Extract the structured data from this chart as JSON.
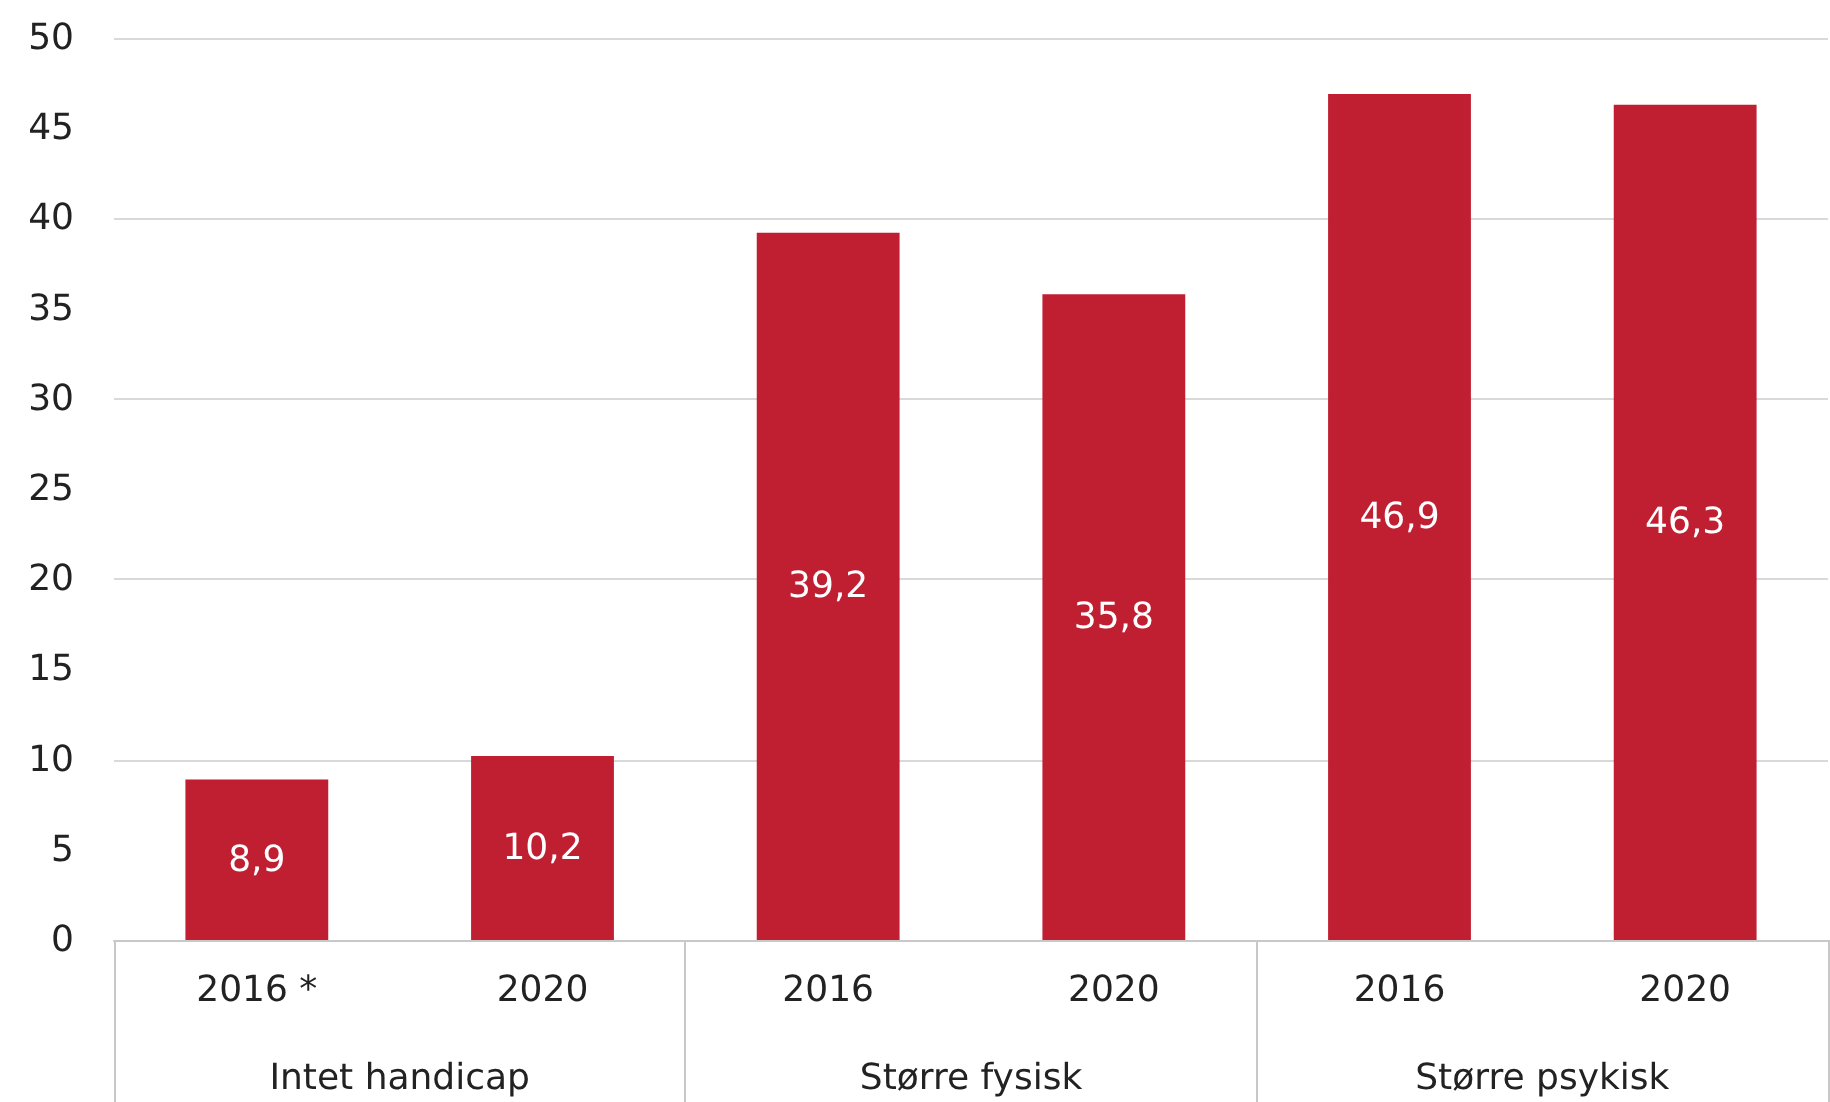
{
  "chart_data": {
    "type": "bar",
    "categories": [
      "2016 *",
      "2020",
      "2016",
      "2020",
      "2016",
      "2020"
    ],
    "values": [
      8.9,
      10.2,
      39.2,
      35.8,
      46.9,
      46.3
    ],
    "color": "#c01f32",
    "value_labels": [
      "8,9",
      "10,2",
      "39,2",
      "35,8",
      "46,9",
      "46,3"
    ],
    "ylim": [
      0,
      50
    ],
    "yticks": [
      0,
      5,
      10,
      15,
      20,
      25,
      30,
      35,
      40,
      45,
      50
    ],
    "grid": "y",
    "annotations": [
      "Intet handicap",
      "Større fysisk",
      "Større psykisk"
    ]
  }
}
